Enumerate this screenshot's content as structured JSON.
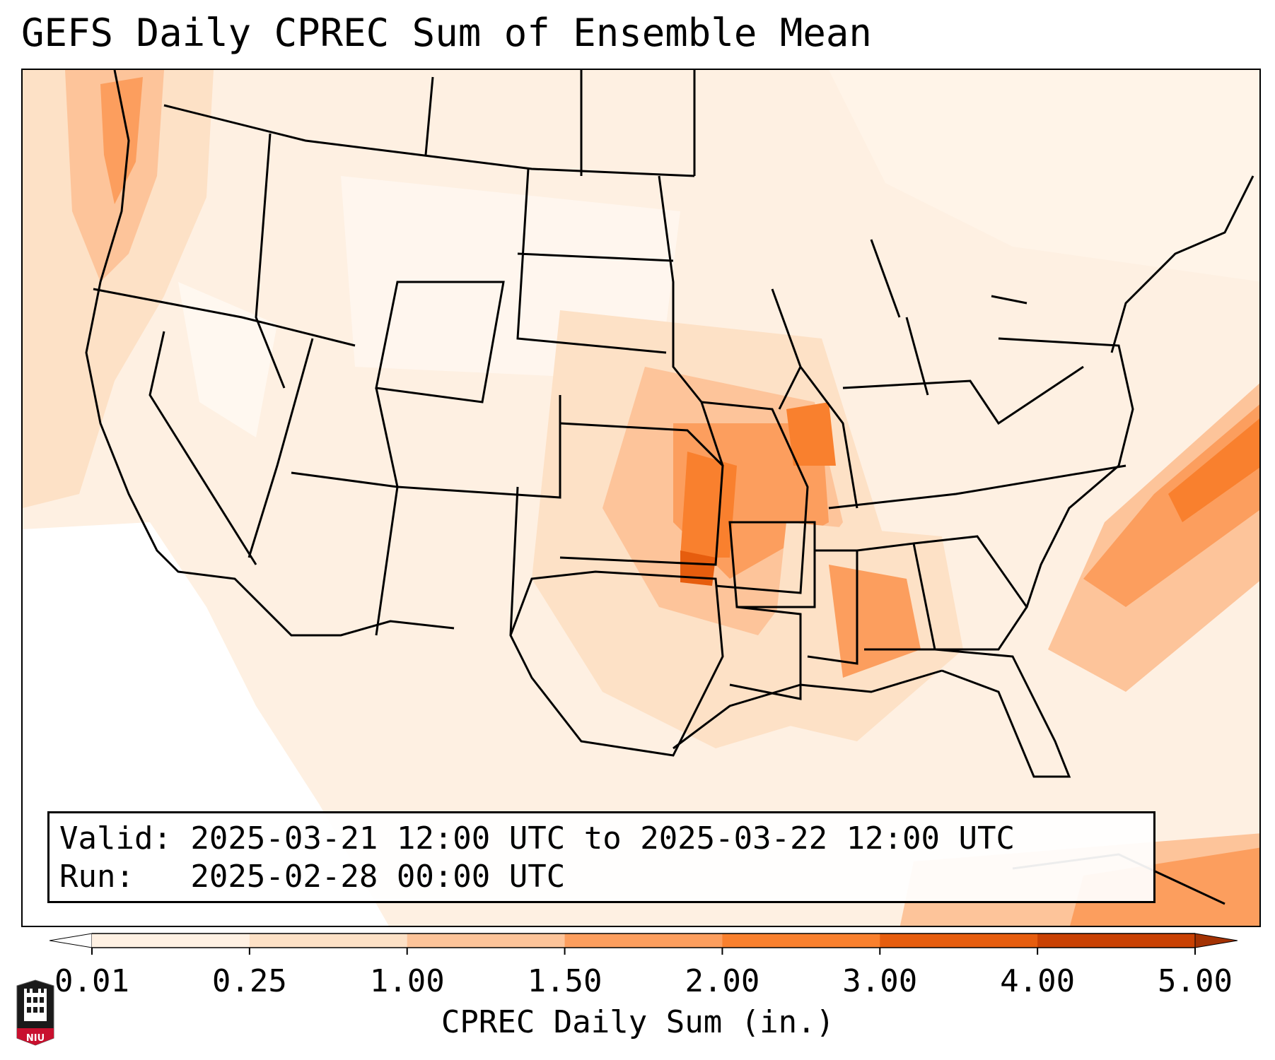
{
  "title": "GEFS Daily CPREC Sum of Ensemble Mean",
  "info": {
    "valid": "Valid: 2025-03-21 12:00 UTC to 2025-03-22 12:00 UTC",
    "run": "Run:   2025-02-28 00:00 UTC"
  },
  "colorbar": {
    "label": "CPREC Daily Sum (in.)",
    "ticks": [
      "0.01",
      "0.25",
      "1.00",
      "1.50",
      "2.00",
      "3.00",
      "4.00",
      "5.00"
    ],
    "colors": [
      "#ffffff",
      "#fff1e3",
      "#fde1c6",
      "#fdc49a",
      "#fc9e5e",
      "#f9802e",
      "#e65d0e",
      "#c94103",
      "#a33203"
    ]
  },
  "logo": {
    "text": "NIU"
  }
}
